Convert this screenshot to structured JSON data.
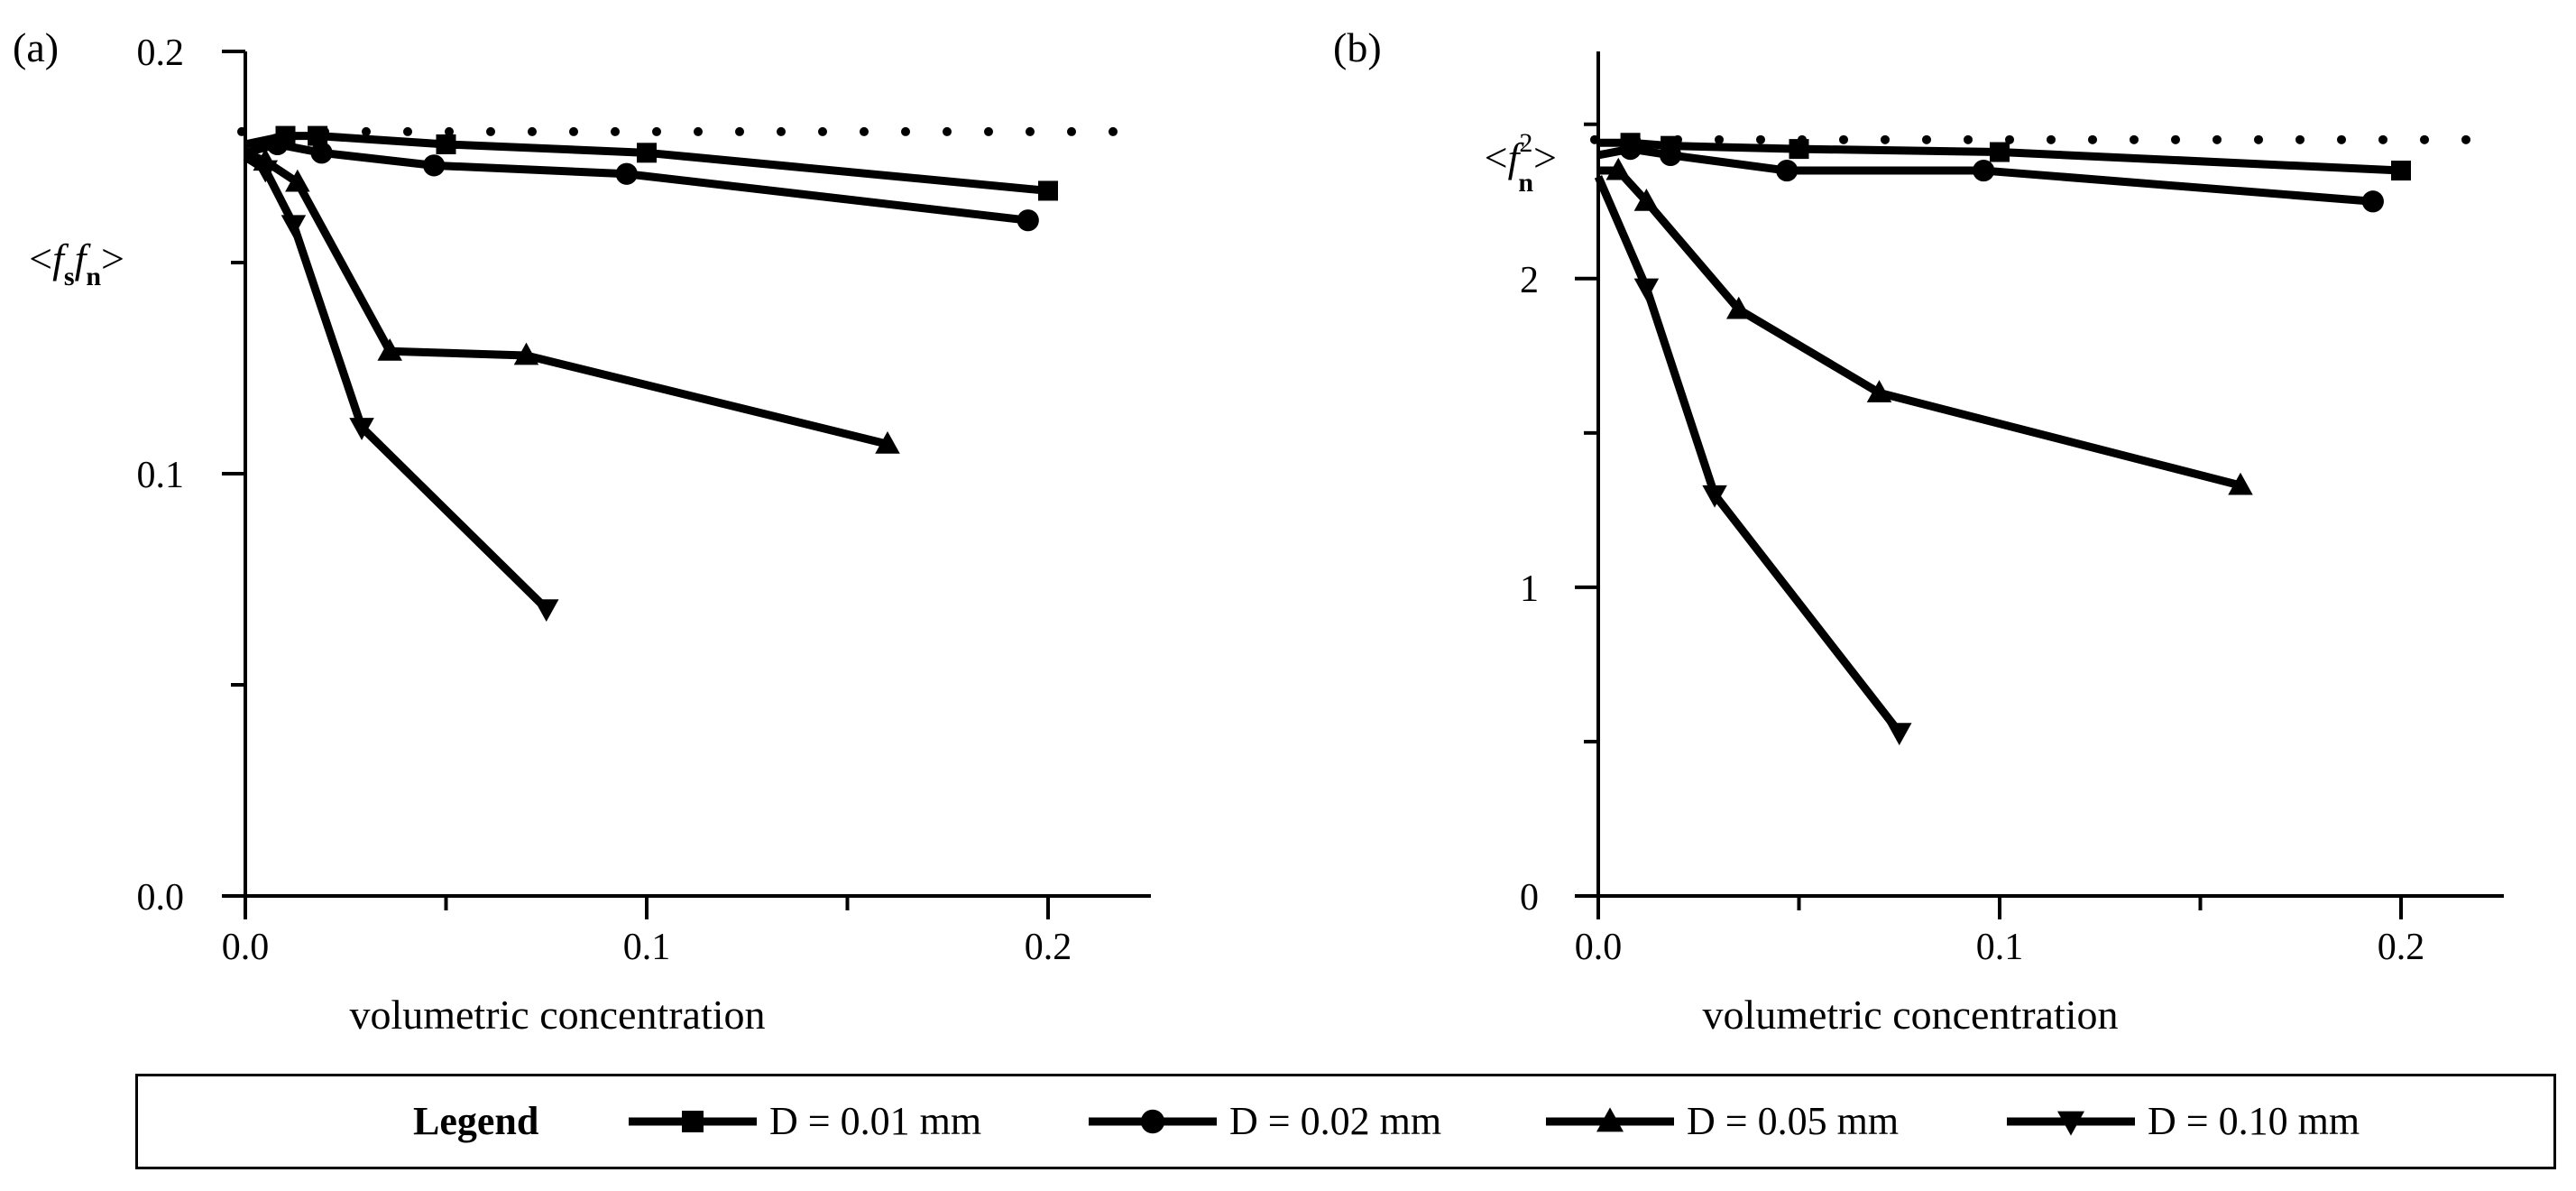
{
  "legend": {
    "title": "Legend",
    "items": [
      {
        "label": "D = 0.01 mm",
        "marker": "square"
      },
      {
        "label": "D = 0.02 mm",
        "marker": "circle"
      },
      {
        "label": "D = 0.05 mm",
        "marker": "triangle-up"
      },
      {
        "label": "D = 0.10 mm",
        "marker": "triangle-down"
      }
    ]
  },
  "chart_data": [
    {
      "panel_label": "(a)",
      "type": "line",
      "xlabel": "volumetric concentration",
      "ylabel": "<f_s f_n>",
      "xlim": [
        0,
        0.22
      ],
      "ylim": [
        0,
        0.2
      ],
      "x_ticks": [
        "0.0",
        "0.1",
        "0.2"
      ],
      "y_ticks": [
        "0.0",
        "0.1",
        "0.2"
      ],
      "reference_line": {
        "style": "dotted",
        "y": 0.181
      },
      "series": [
        {
          "name": "D = 0.01 mm",
          "marker": "square",
          "x": [
            0.0,
            0.01,
            0.018,
            0.05,
            0.1,
            0.2
          ],
          "y": [
            0.178,
            0.18,
            0.18,
            0.178,
            0.176,
            0.167
          ]
        },
        {
          "name": "D = 0.02 mm",
          "marker": "circle",
          "x": [
            0.0,
            0.008,
            0.019,
            0.047,
            0.095,
            0.195
          ],
          "y": [
            0.176,
            0.178,
            0.176,
            0.173,
            0.171,
            0.16
          ]
        },
        {
          "name": "D = 0.05 mm",
          "marker": "triangle-up",
          "x": [
            0.0,
            0.005,
            0.013,
            0.036,
            0.07,
            0.16
          ],
          "y": [
            0.176,
            0.174,
            0.169,
            0.129,
            0.128,
            0.107
          ]
        },
        {
          "name": "D = 0.10 mm",
          "marker": "triangle-down",
          "x": [
            0.0,
            0.005,
            0.012,
            0.029,
            0.075
          ],
          "y": [
            0.175,
            0.172,
            0.159,
            0.111,
            0.068
          ]
        }
      ]
    },
    {
      "panel_label": "(b)",
      "type": "line",
      "xlabel": "volumetric concentration",
      "ylabel": "<f_n^2>",
      "xlim": [
        0,
        0.22
      ],
      "ylim": [
        0,
        2.8
      ],
      "x_ticks": [
        "0.0",
        "0.1",
        "0.2"
      ],
      "y_ticks": [
        "0",
        "1",
        "2"
      ],
      "reference_line": {
        "style": "dotted",
        "y": 2.45
      },
      "series": [
        {
          "name": "D = 0.01 mm",
          "marker": "square",
          "x": [
            0.0,
            0.008,
            0.018,
            0.05,
            0.1,
            0.2
          ],
          "y": [
            2.44,
            2.44,
            2.43,
            2.42,
            2.41,
            2.35
          ]
        },
        {
          "name": "D = 0.02 mm",
          "marker": "circle",
          "x": [
            0.0,
            0.008,
            0.018,
            0.047,
            0.096,
            0.193
          ],
          "y": [
            2.4,
            2.42,
            2.4,
            2.35,
            2.35,
            2.25
          ]
        },
        {
          "name": "D = 0.05 mm",
          "marker": "triangle-up",
          "x": [
            0.0,
            0.005,
            0.012,
            0.035,
            0.07,
            0.16
          ],
          "y": [
            2.35,
            2.35,
            2.25,
            1.9,
            1.63,
            1.33
          ]
        },
        {
          "name": "D = 0.10 mm",
          "marker": "triangle-down",
          "x": [
            0.0,
            0.012,
            0.029,
            0.075
          ],
          "y": [
            2.33,
            1.97,
            1.3,
            0.53
          ]
        }
      ]
    }
  ]
}
